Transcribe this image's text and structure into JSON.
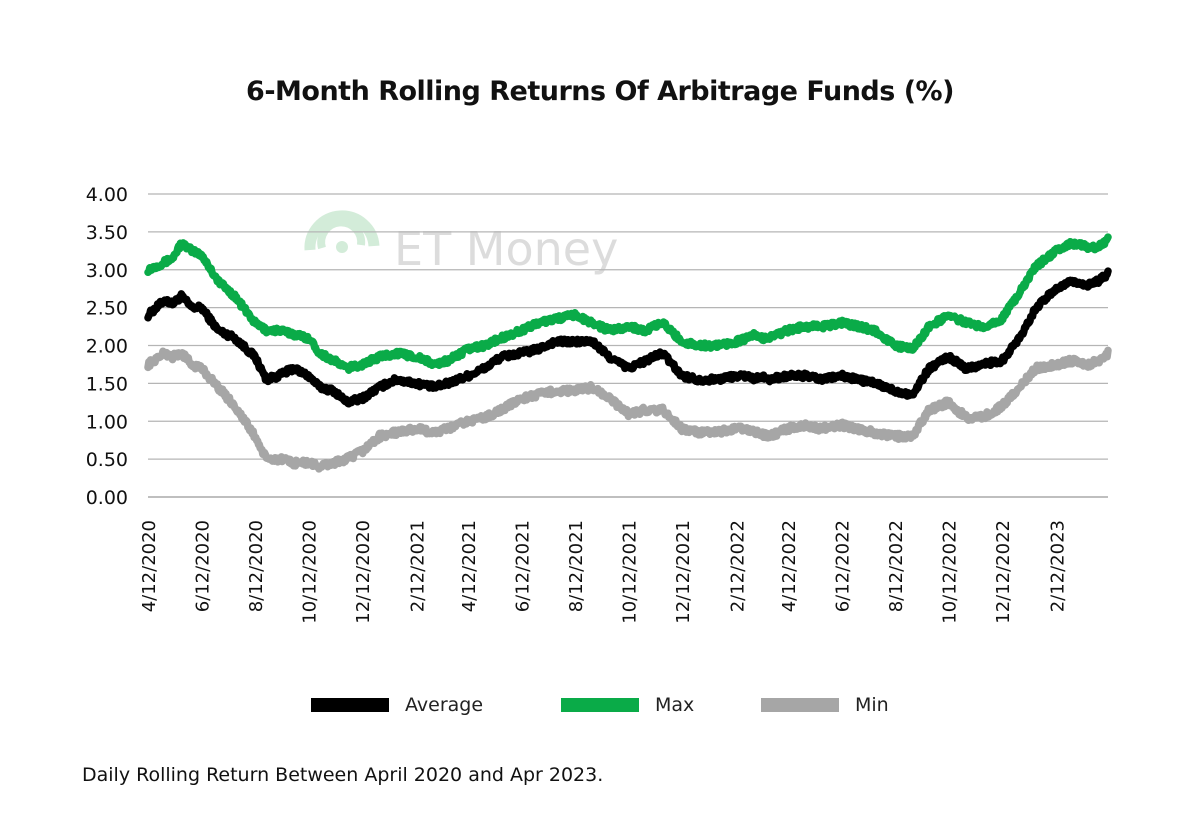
{
  "chart_data": {
    "type": "line",
    "title": "6-Month Rolling Returns Of Arbitrage Funds (%)",
    "xlabel": "",
    "ylabel": "",
    "ylim": [
      0,
      4
    ],
    "ytick_labels": [
      "0.00",
      "0.50",
      "1.00",
      "1.50",
      "2.00",
      "2.50",
      "3.00",
      "3.50",
      "4.00"
    ],
    "xtick_labels": [
      "4/12/2020",
      "6/12/2020",
      "8/12/2020",
      "10/12/2020",
      "12/12/2020",
      "2/12/2021",
      "4/12/2021",
      "6/12/2021",
      "8/12/2021",
      "10/12/2021",
      "12/12/2021",
      "2/12/2022",
      "4/12/2022",
      "6/12/2022",
      "8/12/2022",
      "10/12/2022",
      "12/12/2022",
      "2/12/2023"
    ],
    "x": [
      "2020-04-12",
      "2020-05-01",
      "2020-05-10",
      "2020-05-20",
      "2020-06-01",
      "2020-06-12",
      "2020-07-01",
      "2020-07-20",
      "2020-08-12",
      "2020-08-25",
      "2020-09-08",
      "2020-09-25",
      "2020-10-12",
      "2020-10-25",
      "2020-11-10",
      "2020-11-25",
      "2020-12-12",
      "2021-01-01",
      "2021-01-20",
      "2021-02-12",
      "2021-03-05",
      "2021-03-20",
      "2021-04-12",
      "2021-05-01",
      "2021-05-20",
      "2021-06-12",
      "2021-07-01",
      "2021-07-20",
      "2021-08-12",
      "2021-09-01",
      "2021-09-20",
      "2021-10-12",
      "2021-11-01",
      "2021-11-20",
      "2021-12-12",
      "2022-01-01",
      "2022-01-20",
      "2022-02-12",
      "2022-02-25",
      "2022-03-05",
      "2022-03-10",
      "2022-03-20",
      "2022-04-12",
      "2022-05-01",
      "2022-05-20",
      "2022-06-12",
      "2022-07-01",
      "2022-07-20",
      "2022-08-12",
      "2022-09-01",
      "2022-09-20",
      "2022-10-12",
      "2022-11-01",
      "2022-11-20",
      "2022-12-12",
      "2023-01-01",
      "2023-01-20",
      "2023-02-12",
      "2023-03-01",
      "2023-03-20",
      "2023-04-01",
      "2023-04-12"
    ],
    "series": [
      {
        "name": "Average",
        "color": "#000000",
        "values": [
          2.4,
          2.6,
          2.55,
          2.65,
          2.5,
          2.5,
          2.2,
          2.1,
          1.85,
          1.55,
          1.6,
          1.7,
          1.6,
          1.45,
          1.4,
          1.25,
          1.3,
          1.45,
          1.55,
          1.5,
          1.45,
          1.5,
          1.6,
          1.7,
          1.85,
          1.9,
          1.95,
          2.05,
          2.05,
          2.05,
          1.85,
          1.7,
          1.8,
          1.9,
          1.6,
          1.55,
          1.55,
          1.6,
          1.6,
          1.55,
          1.6,
          1.55,
          1.6,
          1.6,
          1.55,
          1.6,
          1.55,
          1.5,
          1.4,
          1.35,
          1.7,
          1.85,
          1.7,
          1.75,
          1.8,
          2.1,
          2.5,
          2.75,
          2.85,
          2.8,
          2.85,
          2.95
        ]
      },
      {
        "name": "Max",
        "color": "#0aab48",
        "values": [
          3.0,
          3.1,
          3.15,
          3.35,
          3.25,
          3.2,
          2.85,
          2.65,
          2.3,
          2.2,
          2.2,
          2.15,
          2.1,
          1.9,
          1.8,
          1.7,
          1.75,
          1.85,
          1.9,
          1.85,
          1.75,
          1.8,
          1.95,
          2.0,
          2.1,
          2.2,
          2.3,
          2.35,
          2.4,
          2.3,
          2.2,
          2.25,
          2.2,
          2.3,
          2.05,
          2.0,
          2.0,
          2.05,
          2.1,
          2.15,
          2.1,
          2.1,
          2.2,
          2.25,
          2.25,
          2.3,
          2.25,
          2.2,
          2.0,
          1.95,
          2.25,
          2.4,
          2.3,
          2.25,
          2.35,
          2.7,
          3.05,
          3.25,
          3.35,
          3.3,
          3.3,
          3.4
        ]
      },
      {
        "name": "Min",
        "color": "#a6a6a6",
        "values": [
          1.75,
          1.9,
          1.85,
          1.9,
          1.75,
          1.7,
          1.45,
          1.2,
          0.8,
          0.5,
          0.5,
          0.45,
          0.45,
          0.4,
          0.45,
          0.5,
          0.6,
          0.8,
          0.85,
          0.9,
          0.85,
          0.9,
          1.0,
          1.05,
          1.15,
          1.3,
          1.35,
          1.4,
          1.4,
          1.45,
          1.3,
          1.1,
          1.15,
          1.15,
          0.9,
          0.85,
          0.85,
          0.9,
          0.9,
          0.85,
          0.85,
          0.8,
          0.9,
          0.95,
          0.9,
          0.95,
          0.9,
          0.85,
          0.8,
          0.8,
          1.15,
          1.25,
          1.05,
          1.05,
          1.2,
          1.45,
          1.7,
          1.75,
          1.8,
          1.75,
          1.8,
          1.9
        ]
      }
    ],
    "grid": true,
    "legend_position": "bottom"
  },
  "watermark": "ET Money",
  "footnote": "Daily Rolling Return Between April 2020 and Apr 2023."
}
